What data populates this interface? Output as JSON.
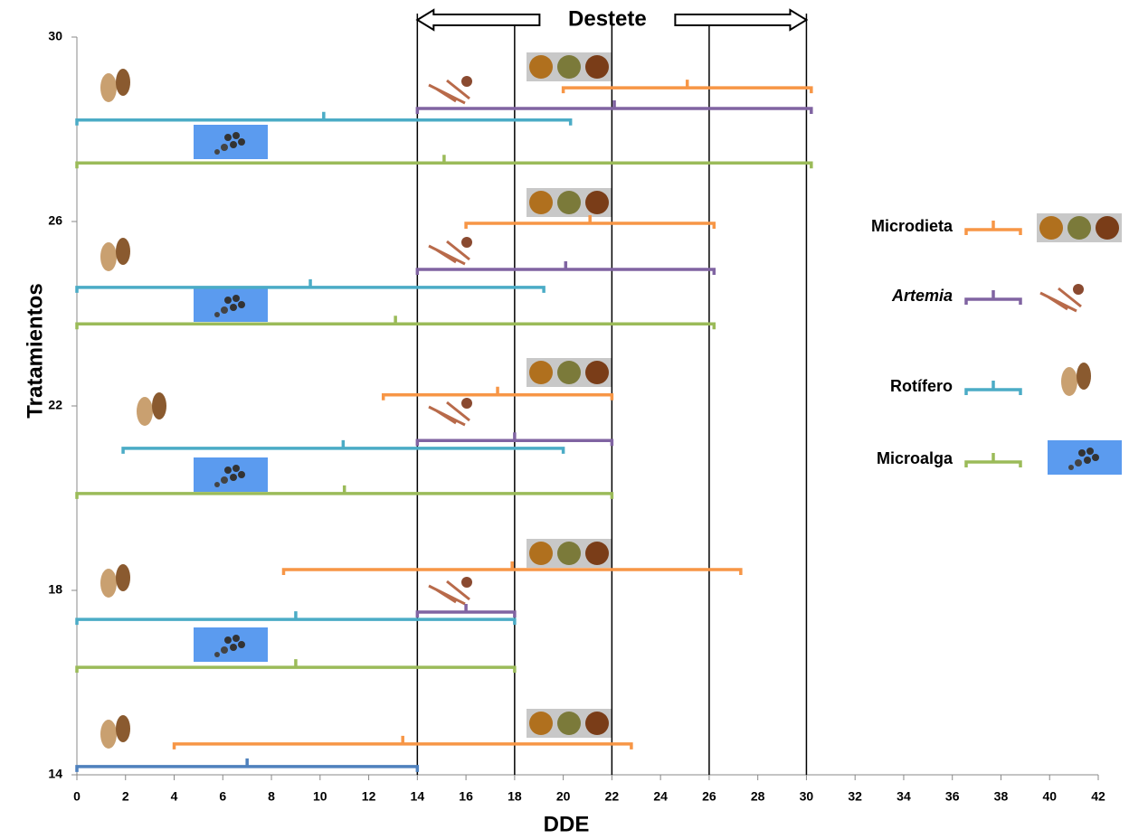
{
  "chart_data": {
    "type": "range",
    "x_label": "DDE",
    "y_label": "Tratamientos",
    "xlim": [
      0,
      42
    ],
    "xticks": [
      0,
      2,
      4,
      6,
      8,
      10,
      12,
      14,
      16,
      18,
      20,
      22,
      24,
      26,
      28,
      30,
      32,
      34,
      36,
      38,
      40,
      42
    ],
    "ylim": [
      14,
      30
    ],
    "yticks": [
      14,
      18,
      22,
      26,
      30
    ],
    "vlines": [
      14,
      18,
      22,
      26,
      30
    ],
    "annotation": {
      "text": "Destete",
      "from": 14,
      "to": 30
    },
    "series": [
      {
        "name": "Microdieta",
        "color": "#f79646",
        "start": [
          20,
          16,
          12.6,
          8.5,
          4
        ],
        "end": [
          30.2,
          26.2,
          22,
          27.3,
          22.8
        ],
        "y": [
          28.9,
          25.96,
          22.24,
          18.45,
          14.67
        ]
      },
      {
        "name": "Artemia",
        "color": "#8064a2",
        "start": [
          14,
          14,
          14,
          14
        ],
        "end": [
          30.2,
          26.2,
          22,
          18
        ],
        "y": [
          28.45,
          24.96,
          21.25,
          17.53
        ]
      },
      {
        "name": "Rotífero",
        "color": "#4bacc6",
        "start": [
          0,
          0,
          1.9,
          0
        ],
        "end": [
          20.3,
          19.2,
          20,
          18
        ],
        "y": [
          28.2,
          24.57,
          21.08,
          17.37
        ]
      },
      {
        "name": "Microalga",
        "color": "#9bbb59",
        "start": [
          0,
          0,
          0,
          0
        ],
        "end": [
          30.2,
          26.2,
          22,
          18
        ],
        "y": [
          27.27,
          23.78,
          20.1,
          16.33
        ]
      },
      {
        "color": "#4f81bd",
        "start": [
          0
        ],
        "end": [
          14
        ],
        "y": [
          14.18
        ]
      }
    ]
  }
}
